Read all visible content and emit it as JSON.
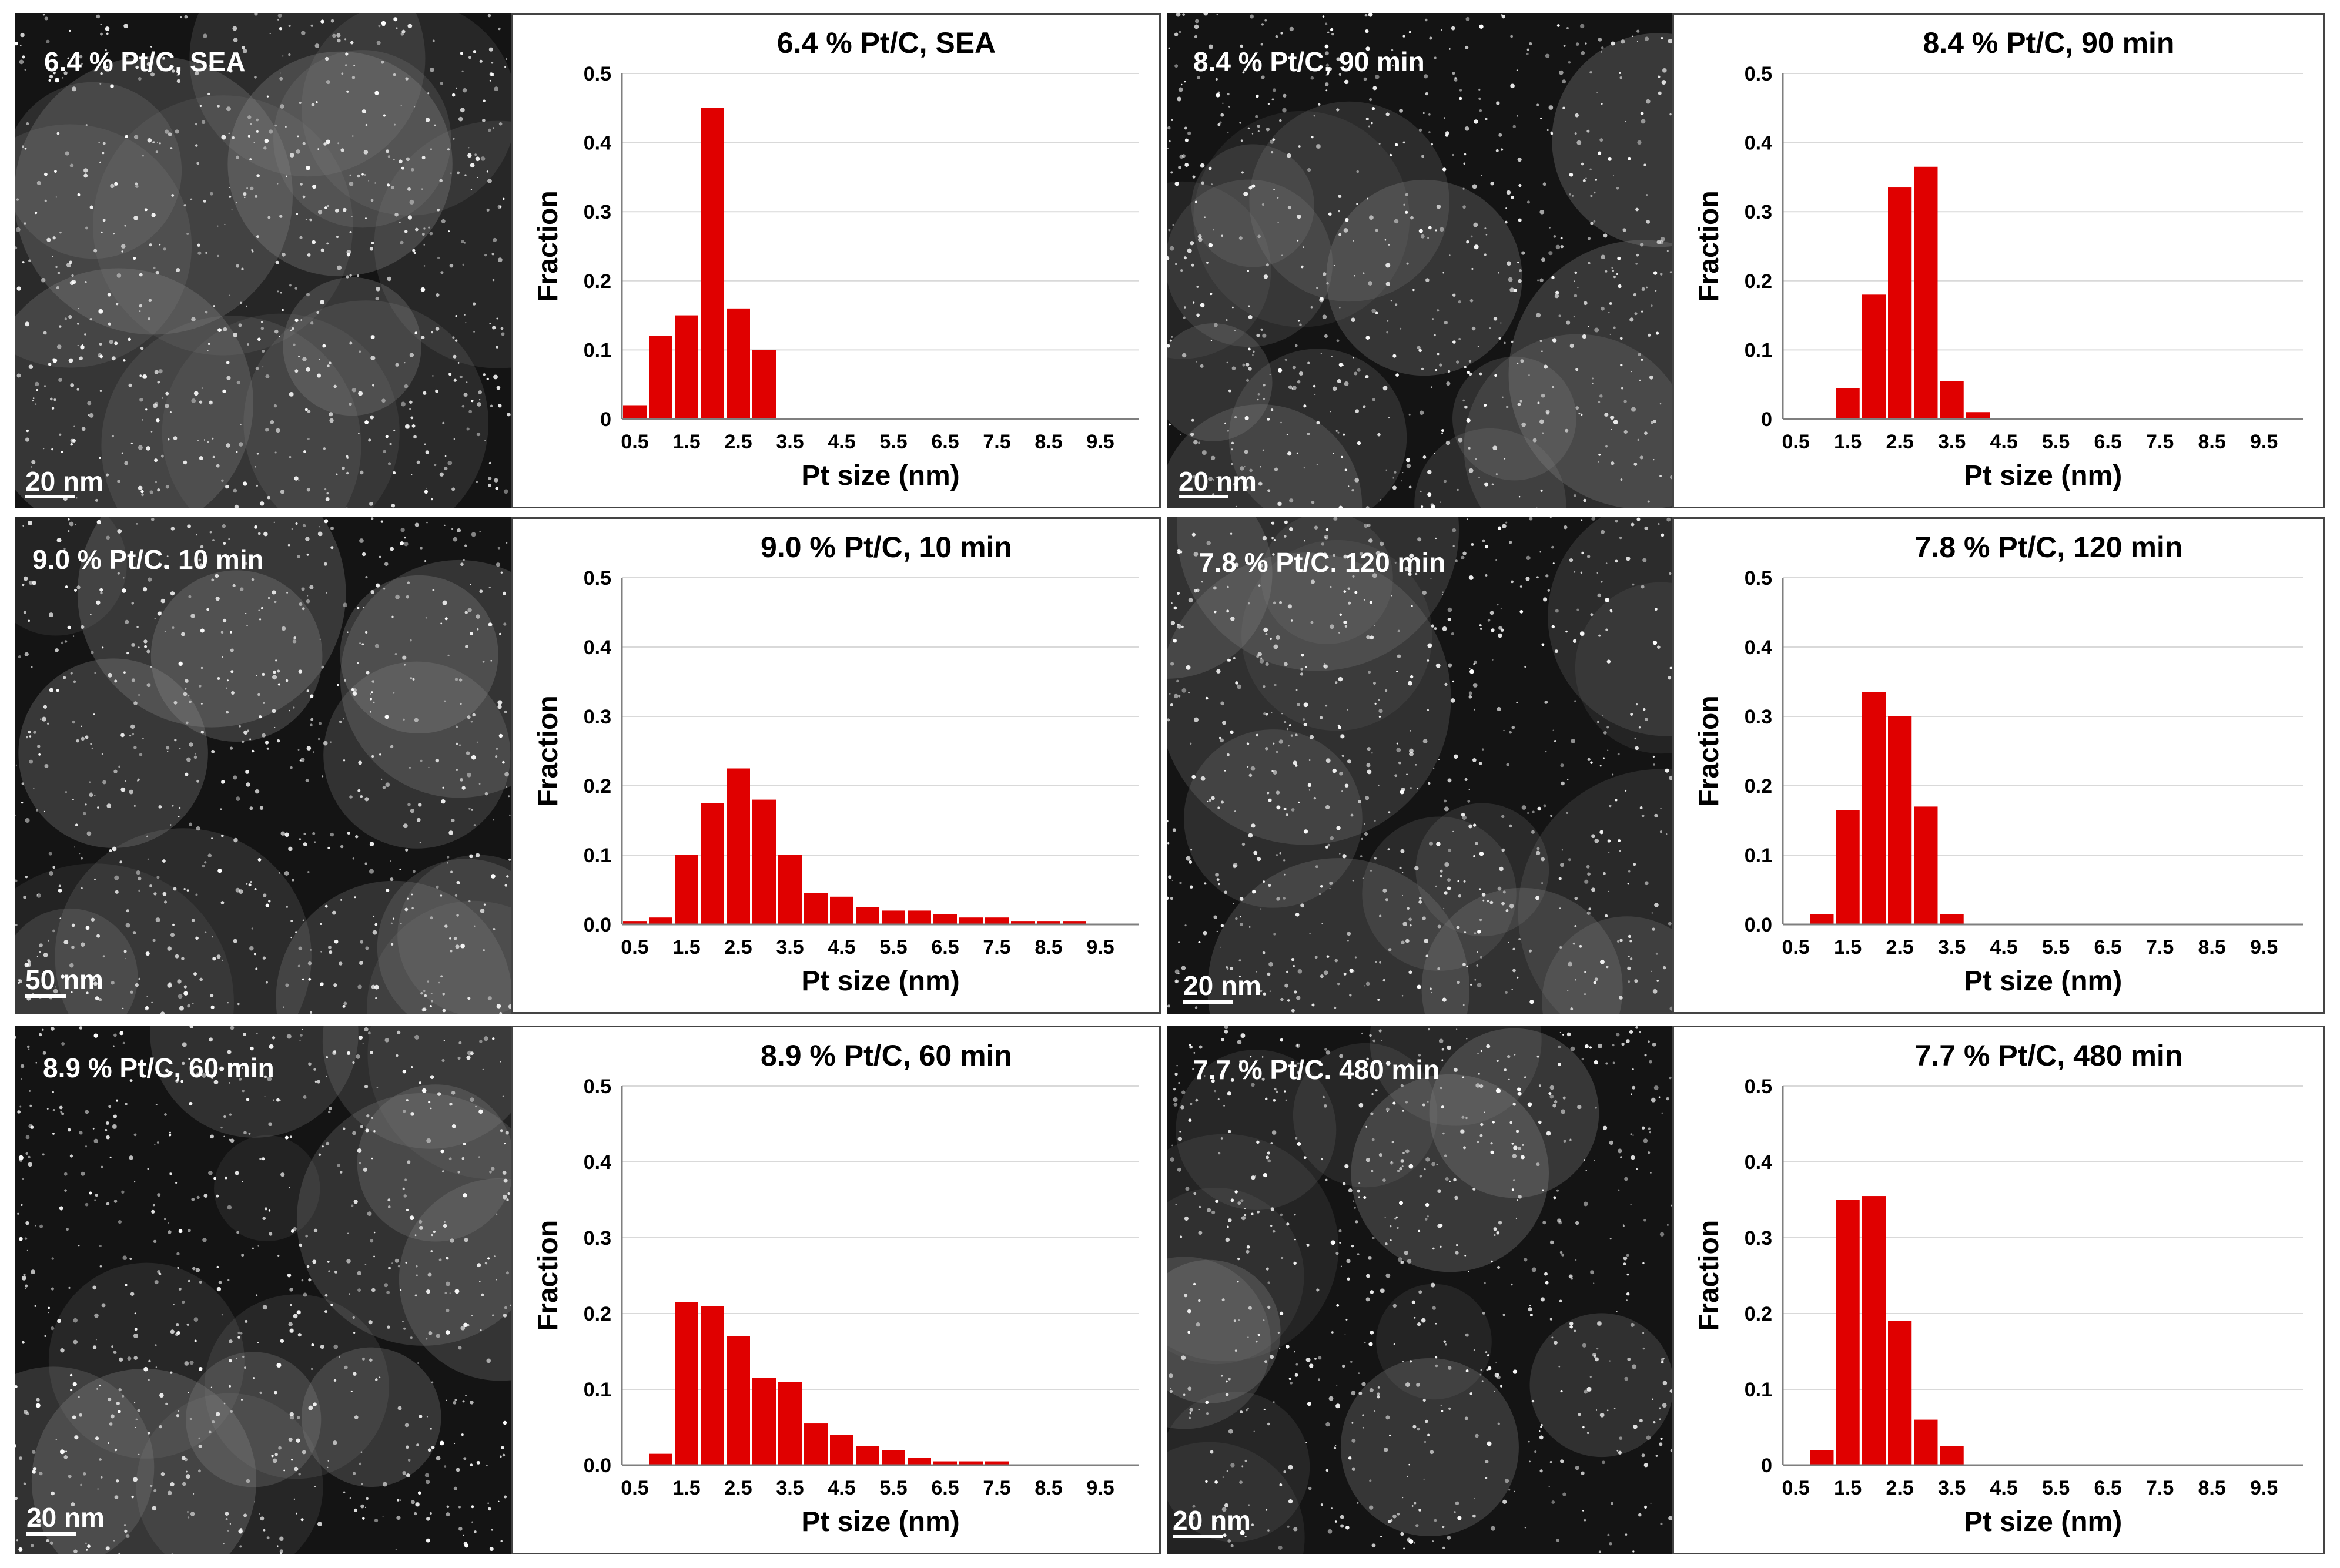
{
  "colors": {
    "bar": "#e00000",
    "gridline": "#d9d9d9",
    "axis": "#7f7f7f"
  },
  "panels": [
    {
      "micrograph": {
        "label": "6.4 % Pt/C, SEA",
        "scale": "20 nm"
      }
    },
    {
      "micrograph": {
        "label": "8.4 % Pt/C, 90 min",
        "scale": "20 nm"
      }
    },
    {
      "micrograph": {
        "label": "9.0 % Pt/C. 10 min",
        "scale": "50 nm"
      }
    },
    {
      "micrograph": {
        "label": "7.8 % Pt/C. 120 min",
        "scale": "20 nm"
      }
    },
    {
      "micrograph": {
        "label": "8.9 % Pt/C, 60 min",
        "scale": "20 nm"
      }
    },
    {
      "micrograph": {
        "label": "7.7 % Pt/C. 480 min",
        "scale": "20 nm"
      }
    }
  ],
  "chart_data": [
    {
      "type": "bar",
      "title": "6.4 % Pt/C, SEA",
      "xlabel": "Pt size (nm)",
      "ylabel": "Fraction",
      "ylim": [
        0,
        0.5
      ],
      "yticks": [
        "0",
        "0.1",
        "0.2",
        "0.3",
        "0.4",
        "0.5"
      ],
      "xticks": [
        "0.5",
        "1.5",
        "2.5",
        "3.5",
        "4.5",
        "5.5",
        "6.5",
        "7.5",
        "8.5",
        "9.5"
      ],
      "x": [
        0.5,
        1.0,
        1.5,
        2.0,
        2.5,
        3.0,
        3.5,
        4.0,
        4.5,
        5.0,
        5.5,
        6.0,
        6.5,
        7.0,
        7.5,
        8.0,
        8.5,
        9.0,
        9.5,
        10.0
      ],
      "values": [
        0.02,
        0.12,
        0.15,
        0.45,
        0.16,
        0.1,
        0,
        0,
        0,
        0,
        0,
        0,
        0,
        0,
        0,
        0,
        0,
        0,
        0,
        0
      ],
      "grid": true
    },
    {
      "type": "bar",
      "title": "8.4 % Pt/C, 90 min",
      "xlabel": "Pt size (nm)",
      "ylabel": "Fraction",
      "ylim": [
        0,
        0.5
      ],
      "yticks": [
        "0",
        "0.1",
        "0.2",
        "0.3",
        "0.4",
        "0.5"
      ],
      "xticks": [
        "0.5",
        "1.5",
        "2.5",
        "3.5",
        "4.5",
        "5.5",
        "6.5",
        "7.5",
        "8.5",
        "9.5"
      ],
      "x": [
        0.5,
        1.0,
        1.5,
        2.0,
        2.5,
        3.0,
        3.5,
        4.0,
        4.5,
        5.0,
        5.5,
        6.0,
        6.5,
        7.0,
        7.5,
        8.0,
        8.5,
        9.0,
        9.5,
        10.0
      ],
      "values": [
        0,
        0,
        0.045,
        0.18,
        0.335,
        0.365,
        0.055,
        0.01,
        0,
        0,
        0,
        0,
        0,
        0,
        0,
        0,
        0,
        0,
        0,
        0
      ],
      "grid": true
    },
    {
      "type": "bar",
      "title": "9.0 % Pt/C, 10 min",
      "xlabel": "Pt size (nm)",
      "ylabel": "Fraction",
      "ylim": [
        0,
        0.5
      ],
      "yticks": [
        "0.0",
        "0.1",
        "0.2",
        "0.3",
        "0.4",
        "0.5"
      ],
      "xticks": [
        "0.5",
        "1.5",
        "2.5",
        "3.5",
        "4.5",
        "5.5",
        "6.5",
        "7.5",
        "8.5",
        "9.5"
      ],
      "x": [
        0.5,
        1.0,
        1.5,
        2.0,
        2.5,
        3.0,
        3.5,
        4.0,
        4.5,
        5.0,
        5.5,
        6.0,
        6.5,
        7.0,
        7.5,
        8.0,
        8.5,
        9.0,
        9.5,
        10.0
      ],
      "values": [
        0.005,
        0.01,
        0.1,
        0.175,
        0.225,
        0.18,
        0.1,
        0.045,
        0.04,
        0.025,
        0.02,
        0.02,
        0.015,
        0.01,
        0.01,
        0.005,
        0.005,
        0.005,
        0,
        0
      ],
      "grid": true
    },
    {
      "type": "bar",
      "title": "7.8 % Pt/C, 120 min",
      "xlabel": "Pt size (nm)",
      "ylabel": "Fraction",
      "ylim": [
        0,
        0.5
      ],
      "yticks": [
        "0.0",
        "0.1",
        "0.2",
        "0.3",
        "0.4",
        "0.5"
      ],
      "xticks": [
        "0.5",
        "1.5",
        "2.5",
        "3.5",
        "4.5",
        "5.5",
        "6.5",
        "7.5",
        "8.5",
        "9.5"
      ],
      "x": [
        0.5,
        1.0,
        1.5,
        2.0,
        2.5,
        3.0,
        3.5,
        4.0,
        4.5,
        5.0,
        5.5,
        6.0,
        6.5,
        7.0,
        7.5,
        8.0,
        8.5,
        9.0,
        9.5,
        10.0
      ],
      "values": [
        0,
        0.015,
        0.165,
        0.335,
        0.3,
        0.17,
        0.015,
        0,
        0,
        0,
        0,
        0,
        0,
        0,
        0,
        0,
        0,
        0,
        0,
        0
      ],
      "grid": true
    },
    {
      "type": "bar",
      "title": "8.9 % Pt/C, 60 min",
      "xlabel": "Pt size (nm)",
      "ylabel": "Fraction",
      "ylim": [
        0,
        0.5
      ],
      "yticks": [
        "0.0",
        "0.1",
        "0.2",
        "0.3",
        "0.4",
        "0.5"
      ],
      "xticks": [
        "0.5",
        "1.5",
        "2.5",
        "3.5",
        "4.5",
        "5.5",
        "6.5",
        "7.5",
        "8.5",
        "9.5"
      ],
      "x": [
        0.5,
        1.0,
        1.5,
        2.0,
        2.5,
        3.0,
        3.5,
        4.0,
        4.5,
        5.0,
        5.5,
        6.0,
        6.5,
        7.0,
        7.5,
        8.0,
        8.5,
        9.0,
        9.5,
        10.0
      ],
      "values": [
        0,
        0.015,
        0.215,
        0.21,
        0.17,
        0.115,
        0.11,
        0.055,
        0.04,
        0.025,
        0.02,
        0.01,
        0.005,
        0.005,
        0.005,
        0,
        0,
        0,
        0,
        0
      ],
      "grid": true
    },
    {
      "type": "bar",
      "title": "7.7 % Pt/C, 480 min",
      "xlabel": "Pt size (nm)",
      "ylabel": "Fraction",
      "ylim": [
        0,
        0.5
      ],
      "yticks": [
        "0",
        "0.1",
        "0.2",
        "0.3",
        "0.4",
        "0.5"
      ],
      "xticks": [
        "0.5",
        "1.5",
        "2.5",
        "3.5",
        "4.5",
        "5.5",
        "6.5",
        "7.5",
        "8.5",
        "9.5"
      ],
      "x": [
        0.5,
        1.0,
        1.5,
        2.0,
        2.5,
        3.0,
        3.5,
        4.0,
        4.5,
        5.0,
        5.5,
        6.0,
        6.5,
        7.0,
        7.5,
        8.0,
        8.5,
        9.0,
        9.5,
        10.0
      ],
      "values": [
        0,
        0.02,
        0.35,
        0.355,
        0.19,
        0.06,
        0.025,
        0,
        0,
        0,
        0,
        0,
        0,
        0,
        0,
        0,
        0,
        0,
        0,
        0
      ],
      "grid": true
    }
  ]
}
